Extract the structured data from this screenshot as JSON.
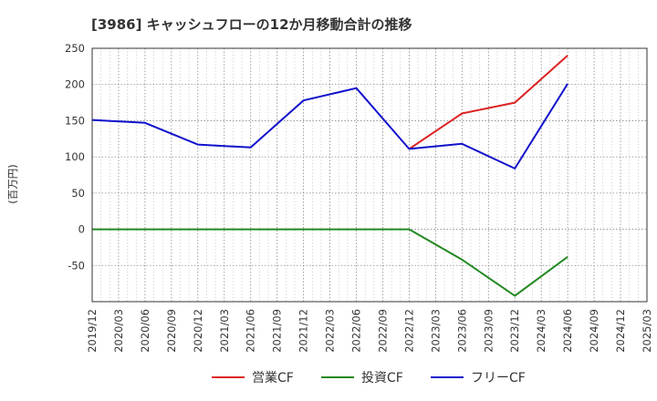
{
  "chart_data": {
    "type": "line",
    "title": "[3986]  キャッシュフローの12か月移動合計の推移",
    "ylabel": "(百万円)",
    "xlabel": "",
    "ylim": [
      -100,
      250
    ],
    "yticks": [
      250,
      200,
      150,
      100,
      50,
      0,
      -50
    ],
    "categories": [
      "2019/12",
      "2020/03",
      "2020/06",
      "2020/09",
      "2020/12",
      "2021/03",
      "2021/06",
      "2021/09",
      "2021/12",
      "2022/03",
      "2022/06",
      "2022/09",
      "2022/12",
      "2023/03",
      "2023/06",
      "2023/09",
      "2023/12",
      "2024/03",
      "2024/06",
      "2024/09",
      "2024/12",
      "2025/03"
    ],
    "grid": true,
    "legend_position": "bottom",
    "series": [
      {
        "name": "営業CF",
        "color": "#dd2222",
        "values": [
          null,
          null,
          null,
          null,
          null,
          null,
          null,
          null,
          null,
          null,
          null,
          null,
          111,
          null,
          160,
          null,
          175,
          null,
          240,
          null,
          null,
          null
        ]
      },
      {
        "name": "投資CF",
        "color": "#228822",
        "values": [
          0,
          null,
          0,
          null,
          0,
          null,
          0,
          null,
          0,
          null,
          0,
          null,
          0,
          null,
          -42,
          null,
          -92,
          null,
          -38,
          null,
          null,
          null
        ]
      },
      {
        "name": "フリーCF",
        "color": "#1111cc",
        "values": [
          151,
          null,
          147,
          null,
          117,
          null,
          113,
          null,
          178,
          null,
          195,
          null,
          111,
          null,
          118,
          null,
          84,
          null,
          201,
          null,
          null,
          null
        ]
      }
    ]
  }
}
